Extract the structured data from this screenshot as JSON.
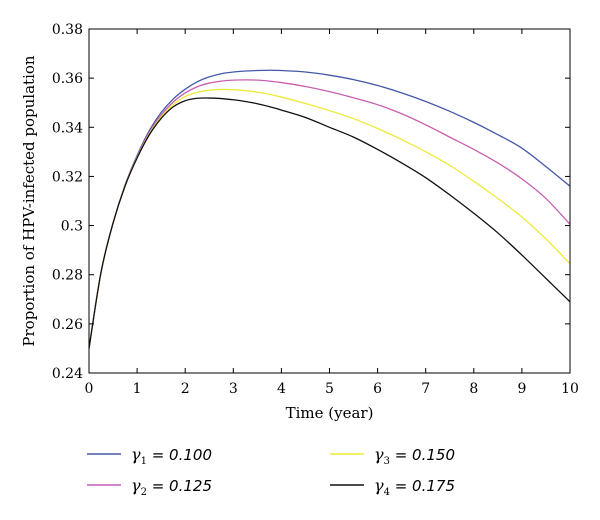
{
  "chart_data": {
    "type": "line",
    "xlabel": "Time (year)",
    "ylabel": "Proportion of HPV-infected population",
    "xlim": [
      0,
      10
    ],
    "ylim": [
      0.24,
      0.38
    ],
    "xticks": [
      "0",
      "1",
      "2",
      "3",
      "4",
      "5",
      "6",
      "7",
      "8",
      "9",
      "10"
    ],
    "yticks": [
      "0.24",
      "0.26",
      "0.28",
      "0.3",
      "0.32",
      "0.34",
      "0.36",
      "0.38"
    ],
    "grid": false,
    "legend_position": "bottom",
    "x": [
      0,
      0.25,
      0.5,
      0.75,
      1,
      1.25,
      1.5,
      1.75,
      2,
      2.25,
      2.5,
      2.75,
      3,
      3.25,
      3.5,
      3.75,
      4,
      4.5,
      5,
      5.5,
      6,
      6.5,
      7,
      7.5,
      8,
      8.5,
      9,
      9.5,
      10
    ],
    "series": [
      {
        "symbol": "γ",
        "subscript": "1",
        "value_text": " = 0.100",
        "color": "#4557a8",
        "values": [
          0.25,
          0.281,
          0.301,
          0.3165,
          0.3285,
          0.3385,
          0.346,
          0.3515,
          0.3555,
          0.3585,
          0.3605,
          0.3618,
          0.3625,
          0.3629,
          0.3631,
          0.3632,
          0.3631,
          0.3625,
          0.3612,
          0.3594,
          0.357,
          0.354,
          0.3505,
          0.3465,
          0.342,
          0.337,
          0.3315,
          0.324,
          0.316
        ]
      },
      {
        "symbol": "γ",
        "subscript": "2",
        "value_text": " = 0.125",
        "color": "#c85fb0",
        "values": [
          0.25,
          0.281,
          0.301,
          0.3163,
          0.328,
          0.3378,
          0.345,
          0.3503,
          0.354,
          0.3565,
          0.358,
          0.3588,
          0.3592,
          0.3593,
          0.3592,
          0.3588,
          0.3582,
          0.3566,
          0.3545,
          0.352,
          0.3492,
          0.3455,
          0.341,
          0.336,
          0.331,
          0.3255,
          0.319,
          0.311,
          0.3005
        ]
      },
      {
        "symbol": "γ",
        "subscript": "3",
        "value_text": " = 0.150",
        "color": "#eeea3a",
        "values": [
          0.25,
          0.281,
          0.301,
          0.3162,
          0.3277,
          0.3372,
          0.3442,
          0.3492,
          0.3525,
          0.3542,
          0.3551,
          0.3554,
          0.3553,
          0.3549,
          0.3543,
          0.3534,
          0.3523,
          0.3497,
          0.3468,
          0.3435,
          0.3395,
          0.335,
          0.33,
          0.3245,
          0.318,
          0.311,
          0.3035,
          0.2945,
          0.2845
        ]
      },
      {
        "symbol": "γ",
        "subscript": "4",
        "value_text": " = 0.175",
        "color": "#111111",
        "values": [
          0.25,
          0.281,
          0.301,
          0.3161,
          0.3275,
          0.3368,
          0.3436,
          0.3483,
          0.3508,
          0.3518,
          0.3519,
          0.3517,
          0.3512,
          0.3505,
          0.3496,
          0.3484,
          0.347,
          0.344,
          0.34,
          0.336,
          0.331,
          0.3255,
          0.3195,
          0.3125,
          0.305,
          0.297,
          0.288,
          0.2785,
          0.269
        ]
      }
    ]
  }
}
